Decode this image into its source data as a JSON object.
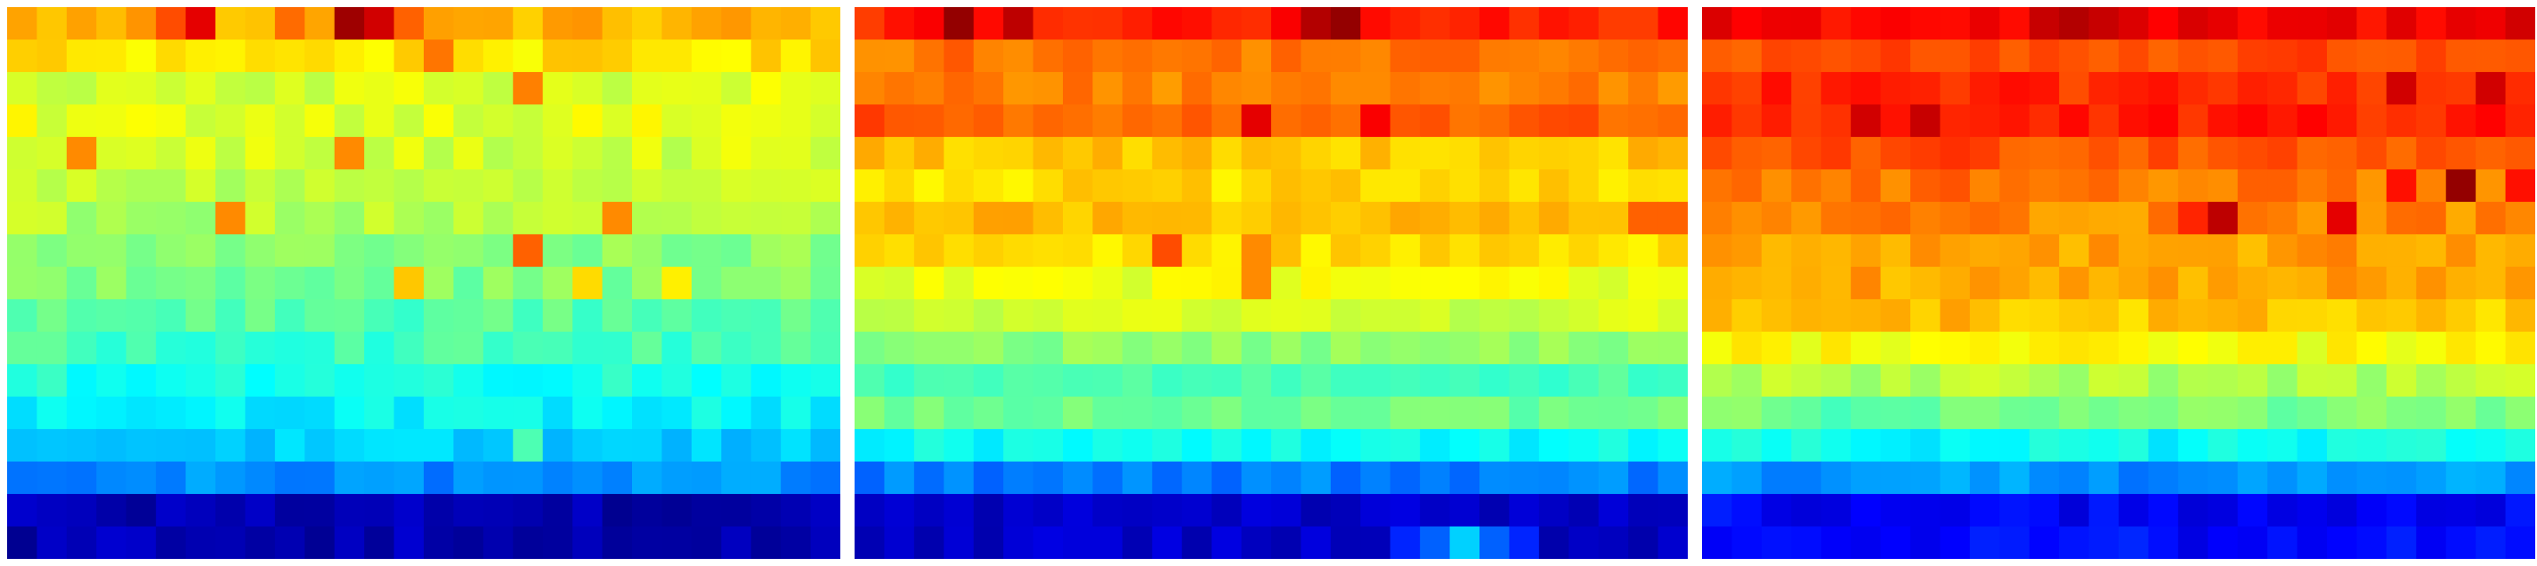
{
  "chart_data": [
    {
      "type": "heatmap",
      "title": "",
      "xlabel": "",
      "ylabel": "",
      "colormap": "jet",
      "colorscale_range": [
        0,
        1
      ],
      "grid": false,
      "axes_visible": false,
      "colorbar": false,
      "n_rows": 17,
      "n_cols": 28,
      "row_means": [
        0.7,
        0.65,
        0.59,
        0.6,
        0.58,
        0.56,
        0.55,
        0.51,
        0.5,
        0.46,
        0.44,
        0.4,
        0.37,
        0.32,
        0.26,
        0.05,
        0.05
      ],
      "noise": 0.035,
      "hotspots": [
        {
          "row": 0,
          "col": 6,
          "value": 0.9
        },
        {
          "row": 0,
          "col": 11,
          "value": 0.97
        },
        {
          "row": 0,
          "col": 12,
          "value": 0.92
        },
        {
          "row": 0,
          "col": 5,
          "value": 0.8
        },
        {
          "row": 0,
          "col": 13,
          "value": 0.78
        },
        {
          "row": 0,
          "col": 9,
          "value": 0.77
        },
        {
          "row": 0,
          "col": 4,
          "value": 0.73
        },
        {
          "row": 1,
          "col": 14,
          "value": 0.76
        },
        {
          "row": 2,
          "col": 17,
          "value": 0.75
        },
        {
          "row": 4,
          "col": 2,
          "value": 0.74
        },
        {
          "row": 4,
          "col": 11,
          "value": 0.74
        },
        {
          "row": 6,
          "col": 7,
          "value": 0.74
        },
        {
          "row": 6,
          "col": 20,
          "value": 0.74
        },
        {
          "row": 7,
          "col": 17,
          "value": 0.78
        },
        {
          "row": 8,
          "col": 13,
          "value": 0.68
        },
        {
          "row": 8,
          "col": 19,
          "value": 0.66
        },
        {
          "row": 8,
          "col": 22,
          "value": 0.64
        },
        {
          "row": 13,
          "col": 17,
          "value": 0.45
        },
        {
          "row": 13,
          "col": 8,
          "value": 0.3
        }
      ]
    },
    {
      "type": "heatmap",
      "title": "",
      "xlabel": "",
      "ylabel": "",
      "colormap": "jet",
      "colorscale_range": [
        0,
        1
      ],
      "grid": false,
      "axes_visible": false,
      "colorbar": false,
      "n_rows": 17,
      "n_cols": 28,
      "row_means": [
        0.84,
        0.76,
        0.75,
        0.78,
        0.68,
        0.66,
        0.69,
        0.66,
        0.61,
        0.58,
        0.51,
        0.45,
        0.48,
        0.38,
        0.25,
        0.07,
        0.07
      ],
      "noise": 0.03,
      "hotspots": [
        {
          "row": 0,
          "col": 3,
          "value": 0.98
        },
        {
          "row": 0,
          "col": 5,
          "value": 0.94
        },
        {
          "row": 0,
          "col": 15,
          "value": 0.95
        },
        {
          "row": 0,
          "col": 16,
          "value": 0.98
        },
        {
          "row": 0,
          "col": 2,
          "value": 0.88
        },
        {
          "row": 0,
          "col": 14,
          "value": 0.88
        },
        {
          "row": 0,
          "col": 27,
          "value": 0.87
        },
        {
          "row": 3,
          "col": 13,
          "value": 0.9
        },
        {
          "row": 3,
          "col": 17,
          "value": 0.88
        },
        {
          "row": 3,
          "col": 0,
          "value": 0.82
        },
        {
          "row": 6,
          "col": 26,
          "value": 0.78
        },
        {
          "row": 6,
          "col": 27,
          "value": 0.78
        },
        {
          "row": 7,
          "col": 10,
          "value": 0.8
        },
        {
          "row": 7,
          "col": 13,
          "value": 0.74
        },
        {
          "row": 8,
          "col": 13,
          "value": 0.74
        },
        {
          "row": 16,
          "col": 20,
          "value": 0.33
        },
        {
          "row": 16,
          "col": 19,
          "value": 0.22
        },
        {
          "row": 16,
          "col": 21,
          "value": 0.22
        },
        {
          "row": 16,
          "col": 18,
          "value": 0.16
        },
        {
          "row": 16,
          "col": 22,
          "value": 0.16
        }
      ]
    },
    {
      "type": "heatmap",
      "title": "",
      "xlabel": "",
      "ylabel": "",
      "colormap": "jet",
      "colorscale_range": [
        0,
        1
      ],
      "grid": false,
      "axes_visible": false,
      "colorbar": false,
      "n_rows": 17,
      "n_cols": 28,
      "row_means": [
        0.88,
        0.8,
        0.83,
        0.84,
        0.8,
        0.76,
        0.74,
        0.72,
        0.71,
        0.68,
        0.62,
        0.55,
        0.49,
        0.38,
        0.27,
        0.12,
        0.13
      ],
      "noise": 0.035,
      "hotspots": [
        {
          "row": 0,
          "col": 11,
          "value": 0.93
        },
        {
          "row": 0,
          "col": 12,
          "value": 0.95
        },
        {
          "row": 0,
          "col": 13,
          "value": 0.93
        },
        {
          "row": 0,
          "col": 27,
          "value": 0.92
        },
        {
          "row": 0,
          "col": 0,
          "value": 0.91
        },
        {
          "row": 2,
          "col": 23,
          "value": 0.92
        },
        {
          "row": 2,
          "col": 26,
          "value": 0.92
        },
        {
          "row": 3,
          "col": 5,
          "value": 0.92
        },
        {
          "row": 3,
          "col": 7,
          "value": 0.93
        },
        {
          "row": 5,
          "col": 25,
          "value": 0.98
        },
        {
          "row": 6,
          "col": 17,
          "value": 0.94
        },
        {
          "row": 6,
          "col": 21,
          "value": 0.9
        },
        {
          "row": 6,
          "col": 16,
          "value": 0.84
        },
        {
          "row": 5,
          "col": 23,
          "value": 0.86
        },
        {
          "row": 5,
          "col": 27,
          "value": 0.86
        },
        {
          "row": 9,
          "col": 3,
          "value": 0.7
        },
        {
          "row": 9,
          "col": 8,
          "value": 0.72
        },
        {
          "row": 12,
          "col": 4,
          "value": 0.44
        }
      ]
    }
  ]
}
